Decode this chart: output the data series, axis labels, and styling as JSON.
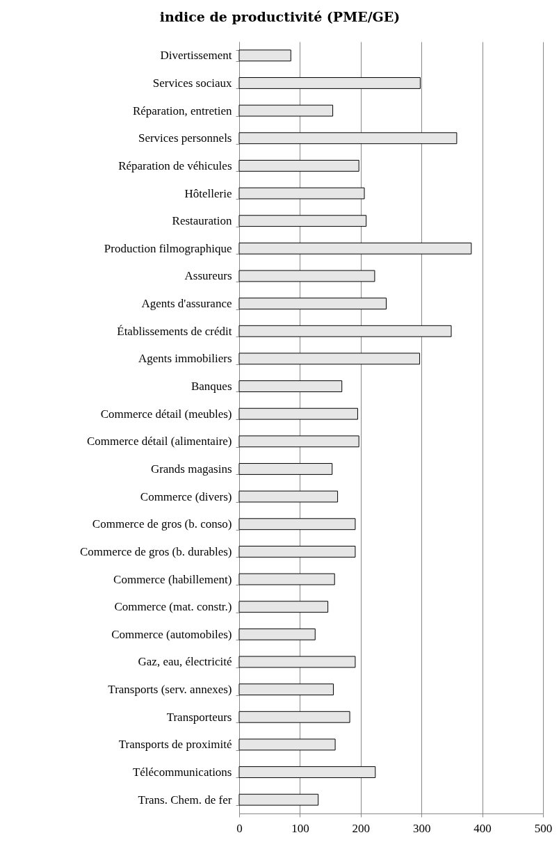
{
  "chart_data": {
    "type": "bar",
    "orientation": "horizontal",
    "title": "indice de productivité (PME/GE)",
    "categories": [
      "Divertissement",
      "Services sociaux",
      "Réparation, entretien",
      "Services personnels",
      "Réparation de véhicules",
      "Hôtellerie",
      "Restauration",
      "Production filmographique",
      "Assureurs",
      "Agents d'assurance",
      "Établissements de crédit",
      "Agents immobiliers",
      "Banques",
      "Commerce détail (meubles)",
      "Commerce détail (alimentaire)",
      "Grands magasins",
      "Commerce (divers)",
      "Commerce de gros (b. conso)",
      "Commerce de gros (b. durables)",
      "Commerce (habillement)",
      "Commerce  (mat. constr.)",
      "Commerce (automobiles)",
      "Gaz, eau, électricité",
      "Transports (serv. annexes)",
      "Transporteurs",
      "Transports de proximité",
      "Télécommunications",
      "Trans. Chem. de fer"
    ],
    "values": [
      85,
      298,
      154,
      358,
      197,
      206,
      209,
      382,
      223,
      242,
      349,
      297,
      169,
      195,
      197,
      153,
      162,
      191,
      191,
      157,
      146,
      125,
      191,
      155,
      182,
      158,
      224,
      130
    ],
    "color": "#e6e6e6",
    "xlim": [
      0,
      500
    ],
    "xticks": [
      0,
      100,
      200,
      300,
      400,
      500
    ],
    "grid": "x"
  }
}
